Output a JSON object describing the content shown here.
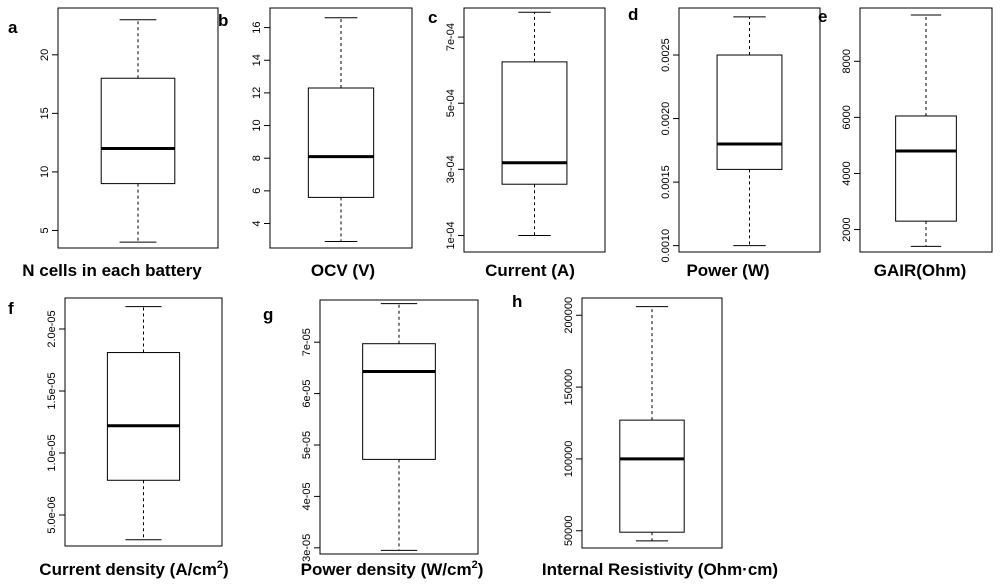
{
  "chart_data": [
    {
      "type": "box",
      "panel": "a",
      "xlabel": "N cells in each battery",
      "caption_sup": "",
      "caption_tail": "",
      "ylim": [
        3.5,
        24
      ],
      "yticks": [
        5,
        10,
        15,
        20
      ],
      "ytick_labels": [
        "5",
        "10",
        "15",
        "20"
      ],
      "stats": {
        "min": 4,
        "q1": 9,
        "median": 12,
        "q3": 18,
        "max": 23
      }
    },
    {
      "type": "box",
      "panel": "b",
      "xlabel": "OCV (V)",
      "caption_sup": "",
      "caption_tail": "",
      "ylim": [
        2.5,
        17.2
      ],
      "yticks": [
        4,
        6,
        8,
        10,
        12,
        14,
        16
      ],
      "ytick_labels": [
        "4",
        "6",
        "8",
        "10",
        "12",
        "14",
        "16"
      ],
      "stats": {
        "min": 2.9,
        "q1": 5.6,
        "median": 8.1,
        "q3": 12.3,
        "max": 16.6
      }
    },
    {
      "type": "box",
      "panel": "c",
      "xlabel": "Current (A)",
      "caption_sup": "",
      "caption_tail": "",
      "ylim": [
        5e-05,
        0.000788
      ],
      "yticks": [
        0.0001,
        0.0003,
        0.0005,
        0.0007
      ],
      "ytick_labels": [
        "1e-04",
        "3e-04",
        "5e-04",
        "7e-04"
      ],
      "stats": {
        "min": 0.0001,
        "q1": 0.000255,
        "median": 0.00032,
        "q3": 0.000625,
        "max": 0.000775
      }
    },
    {
      "type": "box",
      "panel": "d",
      "xlabel": "Power (W)",
      "caption_sup": "",
      "caption_tail": "",
      "ylim": [
        0.00095,
        0.00287
      ],
      "yticks": [
        0.001,
        0.0015,
        0.002,
        0.0025
      ],
      "ytick_labels": [
        "0.0010",
        "0.0015",
        "0.0020",
        "0.0025"
      ],
      "stats": {
        "min": 0.001,
        "q1": 0.0016,
        "median": 0.0018,
        "q3": 0.0025,
        "max": 0.0028
      }
    },
    {
      "type": "box",
      "panel": "e",
      "xlabel": "GAIR(Ohm)",
      "caption_sup": "",
      "caption_tail": "",
      "ylim": [
        1200,
        9900
      ],
      "yticks": [
        2000,
        4000,
        6000,
        8000
      ],
      "ytick_labels": [
        "2000",
        "4000",
        "6000",
        "8000"
      ],
      "stats": {
        "min": 1400,
        "q1": 2300,
        "median": 4800,
        "q3": 6050,
        "max": 9650
      }
    },
    {
      "type": "box",
      "panel": "f",
      "xlabel": "Current density (A/cm",
      "caption_sup": "2",
      "caption_tail": ")",
      "ylim": [
        2.5e-06,
        2.25e-05
      ],
      "yticks": [
        5e-06,
        1e-05,
        1.5e-05,
        2e-05
      ],
      "ytick_labels": [
        "5.0e-06",
        "1.0e-05",
        "1.5e-05",
        "2.0e-05"
      ],
      "stats": {
        "min": 3e-06,
        "q1": 7.8e-06,
        "median": 1.22e-05,
        "q3": 1.81e-05,
        "max": 2.18e-05
      }
    },
    {
      "type": "box",
      "panel": "g",
      "xlabel": "Power density (W/cm",
      "caption_sup": "2",
      "caption_tail": ")",
      "ylim": [
        2.88e-05,
        7.82e-05
      ],
      "yticks": [
        3e-05,
        4e-05,
        5e-05,
        6e-05,
        7e-05
      ],
      "ytick_labels": [
        "3e-05",
        "4e-05",
        "5e-05",
        "6e-05",
        "7e-05"
      ],
      "stats": {
        "min": 2.95e-05,
        "q1": 4.72e-05,
        "median": 6.43e-05,
        "q3": 6.97e-05,
        "max": 7.75e-05
      }
    },
    {
      "type": "box",
      "panel": "h",
      "xlabel": "Internal Resistivity (Ohm·cm)",
      "caption_sup": "",
      "caption_tail": "",
      "ylim": [
        38000,
        212000
      ],
      "yticks": [
        50000,
        100000,
        150000,
        200000
      ],
      "ytick_labels": [
        "50000",
        "100000",
        "150000",
        "200000"
      ],
      "stats": {
        "min": 43000,
        "q1": 49000,
        "median": 100000,
        "q3": 127000,
        "max": 206000
      }
    }
  ]
}
